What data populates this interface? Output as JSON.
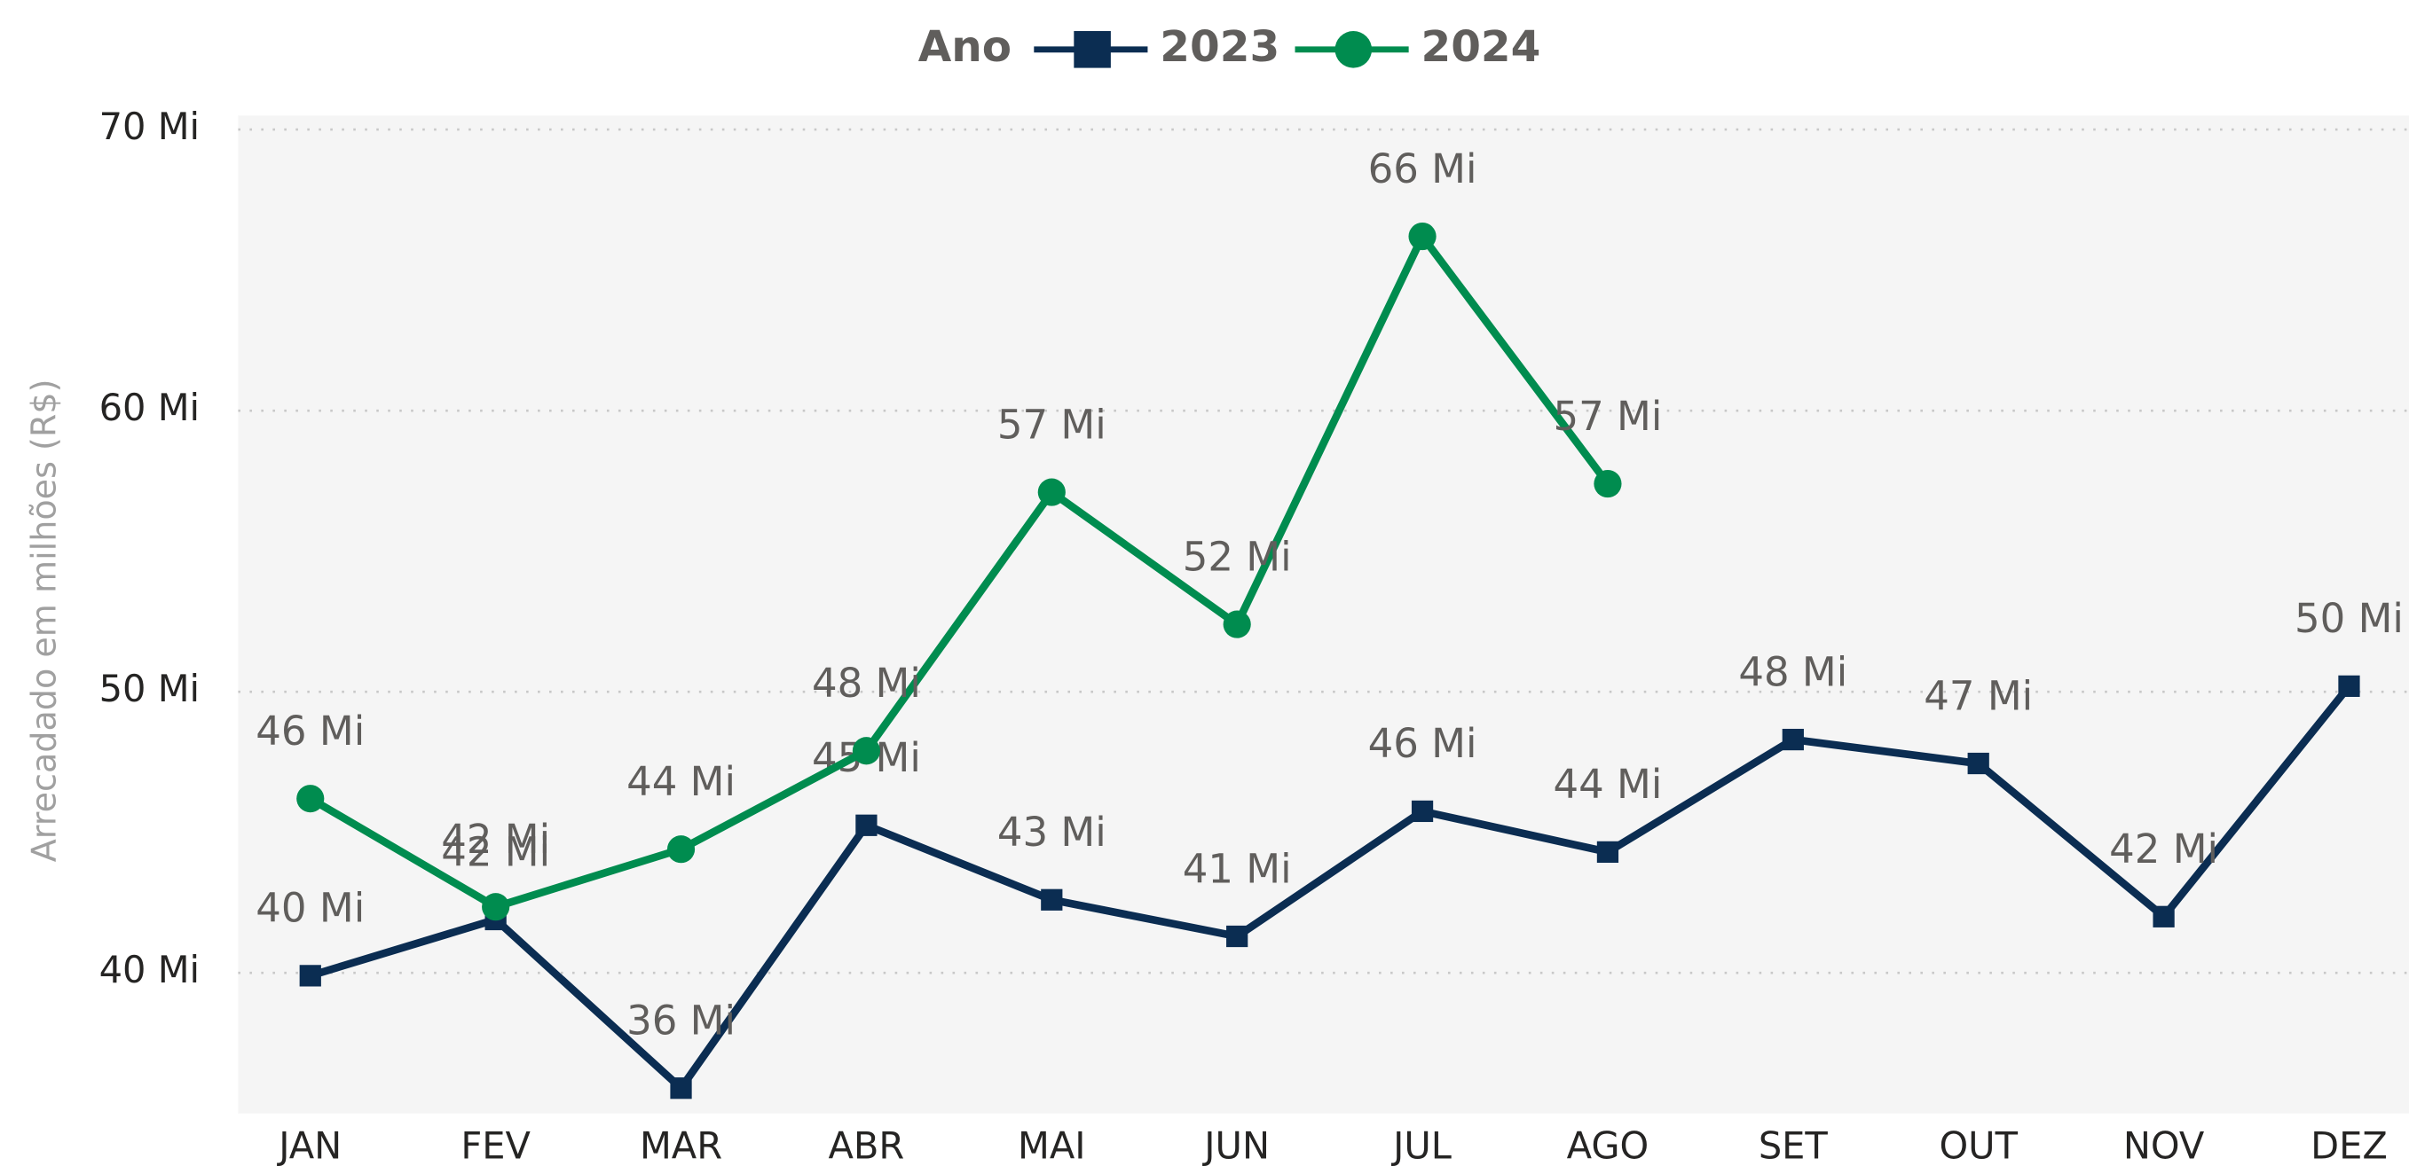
{
  "chart_data": {
    "type": "line",
    "y_label": "Arrecadado em milhões (R$)",
    "legend_title": "Ano",
    "legend_position": "top",
    "categories": [
      "JAN",
      "FEV",
      "MAR",
      "ABR",
      "MAI",
      "JUN",
      "JUL",
      "AGO",
      "SET",
      "OUT",
      "NOV",
      "DEZ"
    ],
    "series": [
      {
        "name": "2023",
        "color": "#0b2d52",
        "marker": "square",
        "values": [
          39.9,
          41.9,
          35.9,
          45.25,
          42.6,
          41.3,
          45.75,
          44.3,
          48.3,
          47.45,
          42.0,
          50.2
        ],
        "value_labels": [
          "40 Mi",
          "42 Mi",
          "36 Mi",
          "45 Mi",
          "43 Mi",
          "41 Mi",
          "46 Mi",
          "44 Mi",
          "48 Mi",
          "47 Mi",
          "42 Mi",
          "50 Mi"
        ]
      },
      {
        "name": "2024",
        "color": "#008c4f",
        "marker": "circle",
        "values": [
          46.2,
          42.35,
          44.4,
          47.9,
          57.1,
          52.4,
          66.2,
          57.4,
          null,
          null,
          null,
          null
        ],
        "value_labels": [
          "46 Mi",
          "42 Mi",
          "44 Mi",
          "48 Mi",
          "57 Mi",
          "52 Mi",
          "66 Mi",
          "57 Mi",
          null,
          null,
          null,
          null
        ]
      }
    ],
    "ylim": [
      35,
      70.5
    ],
    "yticks": [
      {
        "value": 40,
        "label": "40 Mi"
      },
      {
        "value": 50,
        "label": "50 Mi"
      },
      {
        "value": 60,
        "label": "60 Mi"
      },
      {
        "value": 70,
        "label": "70 Mi"
      }
    ],
    "grid": true
  }
}
